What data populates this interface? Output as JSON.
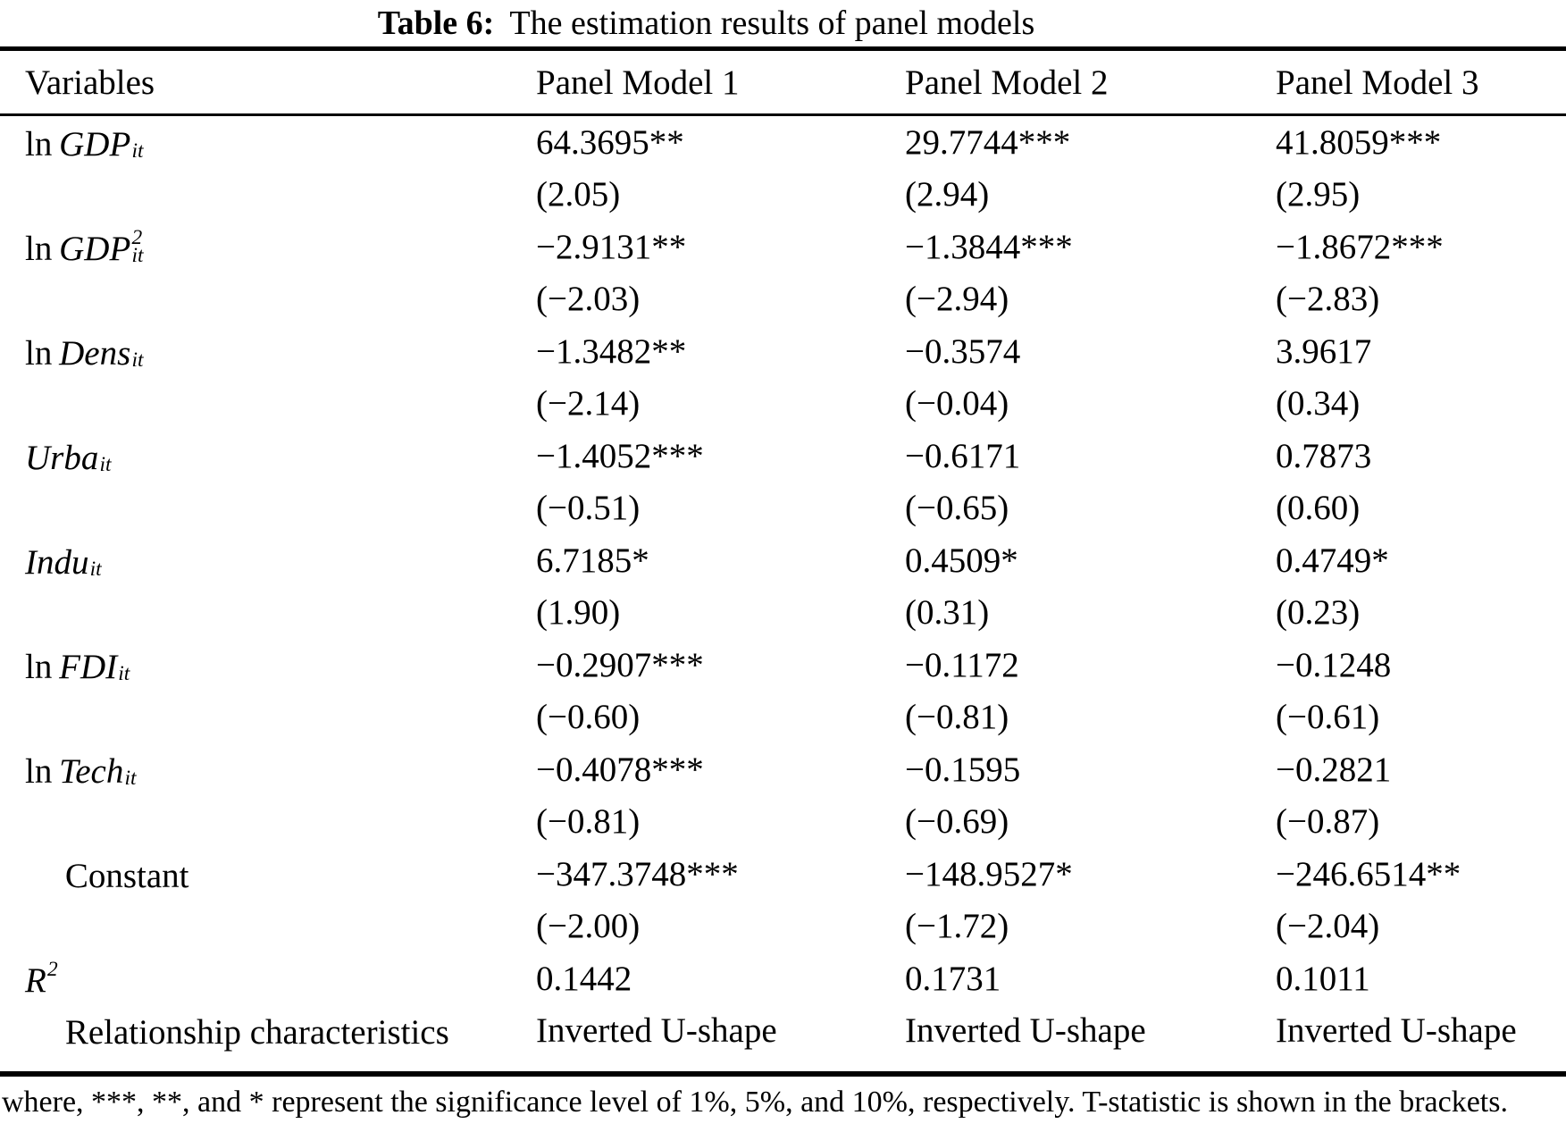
{
  "title": {
    "bold": "Table 6:",
    "rest": "The estimation results of panel models"
  },
  "table": {
    "headers": [
      "Variables",
      "Panel Model 1",
      "Panel Model 2",
      "Panel Model 3"
    ],
    "rows": [
      {
        "variable": {
          "pre": "ln",
          "base": "GDP",
          "sub": "it"
        },
        "cells": [
          {
            "coef": "64.3695**",
            "tstat": "(2.05)"
          },
          {
            "coef": "29.7744***",
            "tstat": "(2.94)"
          },
          {
            "coef": "41.8059***",
            "tstat": "(2.95)"
          }
        ]
      },
      {
        "variable": {
          "pre": "ln",
          "base": "GDP",
          "sup": "2",
          "sub": "it"
        },
        "cells": [
          {
            "coef": "−2.9131**",
            "tstat": "(−2.03)"
          },
          {
            "coef": "−1.3844***",
            "tstat": "(−2.94)"
          },
          {
            "coef": "−1.8672***",
            "tstat": "(−2.83)"
          }
        ]
      },
      {
        "variable": {
          "pre": "ln",
          "base": "Dens",
          "sub": "it"
        },
        "cells": [
          {
            "coef": "−1.3482**",
            "tstat": "(−2.14)"
          },
          {
            "coef": "−0.3574",
            "tstat": "(−0.04)"
          },
          {
            "coef": "3.9617",
            "tstat": "(0.34)"
          }
        ]
      },
      {
        "variable": {
          "base": "Urba",
          "sub": "it"
        },
        "cells": [
          {
            "coef": "−1.4052***",
            "tstat": "(−0.51)"
          },
          {
            "coef": "−0.6171",
            "tstat": "(−0.65)"
          },
          {
            "coef": "0.7873",
            "tstat": "(0.60)"
          }
        ]
      },
      {
        "variable": {
          "base": "Indu",
          "sub": "it"
        },
        "cells": [
          {
            "coef": "6.7185*",
            "tstat": "(1.90)"
          },
          {
            "coef": "0.4509*",
            "tstat": "(0.31)"
          },
          {
            "coef": "0.4749*",
            "tstat": "(0.23)"
          }
        ]
      },
      {
        "variable": {
          "pre": "ln",
          "base": "FDI",
          "sub": "it"
        },
        "cells": [
          {
            "coef": "−0.2907***",
            "tstat": "(−0.60)"
          },
          {
            "coef": "−0.1172",
            "tstat": "(−0.81)"
          },
          {
            "coef": "−0.1248",
            "tstat": "(−0.61)"
          }
        ]
      },
      {
        "variable": {
          "pre": "ln",
          "base": "Tech",
          "sub": "it"
        },
        "cells": [
          {
            "coef": "−0.4078***",
            "tstat": "(−0.81)"
          },
          {
            "coef": "−0.1595",
            "tstat": "(−0.69)"
          },
          {
            "coef": "−0.2821",
            "tstat": "(−0.87)"
          }
        ]
      },
      {
        "variable": {
          "plain": "Constant"
        },
        "cells": [
          {
            "coef": "−347.3748***",
            "tstat": "(−2.00)"
          },
          {
            "coef": "−148.9527*",
            "tstat": "(−1.72)"
          },
          {
            "coef": "−246.6514**",
            "tstat": "(−2.04)"
          }
        ]
      },
      {
        "variable": {
          "base": "R",
          "sup": "2"
        },
        "cells": [
          {
            "coef": "0.1442"
          },
          {
            "coef": "0.1731"
          },
          {
            "coef": "0.1011"
          }
        ]
      },
      {
        "variable": {
          "plain": "Relationship characteristics"
        },
        "cells": [
          {
            "coef": "Inverted U-shape"
          },
          {
            "coef": "Inverted U-shape"
          },
          {
            "coef": "Inverted U-shape"
          }
        ]
      }
    ]
  },
  "footnote": "where, ***, **, and * represent the significance level of 1%, 5%, and 10%, respectively. T-statistic is shown in the brackets."
}
